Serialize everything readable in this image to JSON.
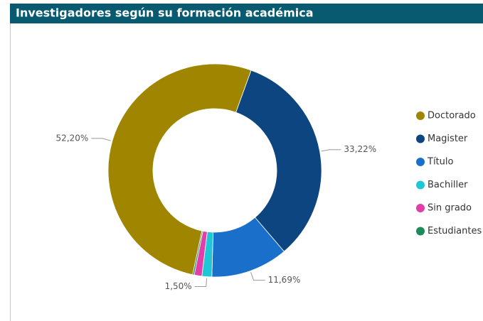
{
  "chart_data": {
    "type": "donut",
    "title": "Investigadores según su formación académica",
    "categories": [
      "Doctorado",
      "Magister",
      "Título",
      "Bachiller",
      "Sin grado",
      "Estudiantes"
    ],
    "values": [
      52.2,
      33.22,
      11.69,
      1.5,
      1.15,
      0.24
    ],
    "value_labels": [
      "52,20%",
      "33,22%",
      "11,69%",
      "1,50%",
      null,
      null
    ],
    "colors": [
      "#a08600",
      "#0c4580",
      "#1a6fcb",
      "#1fc6d6",
      "#e03ea8",
      "#1e8a5a"
    ],
    "legend": "right"
  }
}
